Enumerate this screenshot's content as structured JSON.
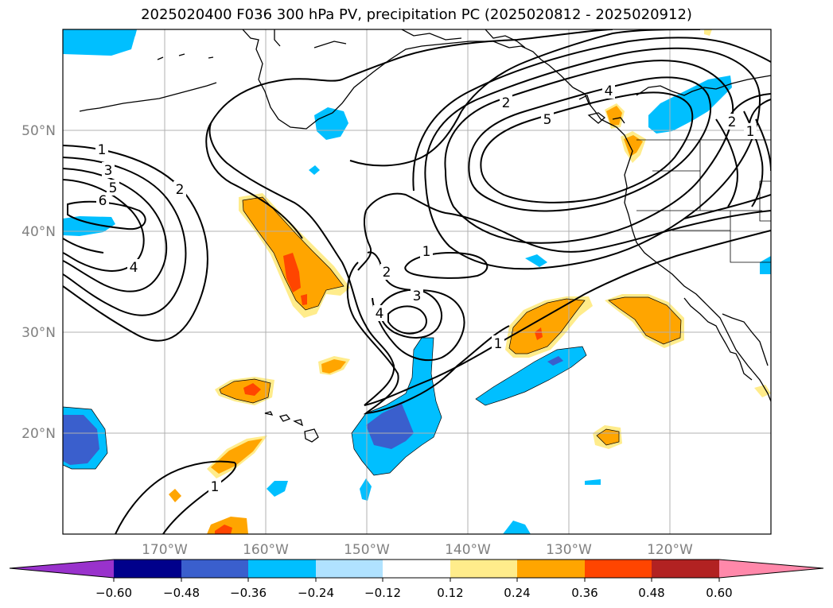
{
  "title": "2025020400 F036 300 hPa PV, precipitation PC (2025020812 - 2025020912)",
  "map": {
    "lon_range": [
      -180,
      -110
    ],
    "lat_range": [
      10,
      60
    ],
    "lat_labels": [
      "20°N",
      "30°N",
      "40°N",
      "50°N"
    ],
    "lon_labels": [
      "170°W",
      "160°W",
      "150°W",
      "140°W",
      "130°W",
      "120°W"
    ],
    "gridlines": true
  },
  "colorbar": {
    "tick_labels": [
      "−0.60",
      "−0.48",
      "−0.36",
      "−0.24",
      "−0.12",
      "0.12",
      "0.24",
      "0.36",
      "0.48",
      "0.60"
    ],
    "colors": [
      "#9932cc",
      "#00008b",
      "#3a5fcd",
      "#00bfff",
      "#b0e2ff",
      "#ffffff",
      "#ffec8b",
      "#ffa500",
      "#ff4500",
      "#b22222",
      "#ff88aa"
    ]
  },
  "contour_labels": [
    "1",
    "3",
    "5",
    "6",
    "2",
    "4",
    "1",
    "2",
    "3",
    "4",
    "2",
    "5",
    "4",
    "2",
    "1",
    "1",
    "1"
  ],
  "colors": {
    "land_outline": "#000000",
    "contour": "#000000",
    "grid": "#b0b0b0",
    "frame": "#000000"
  }
}
